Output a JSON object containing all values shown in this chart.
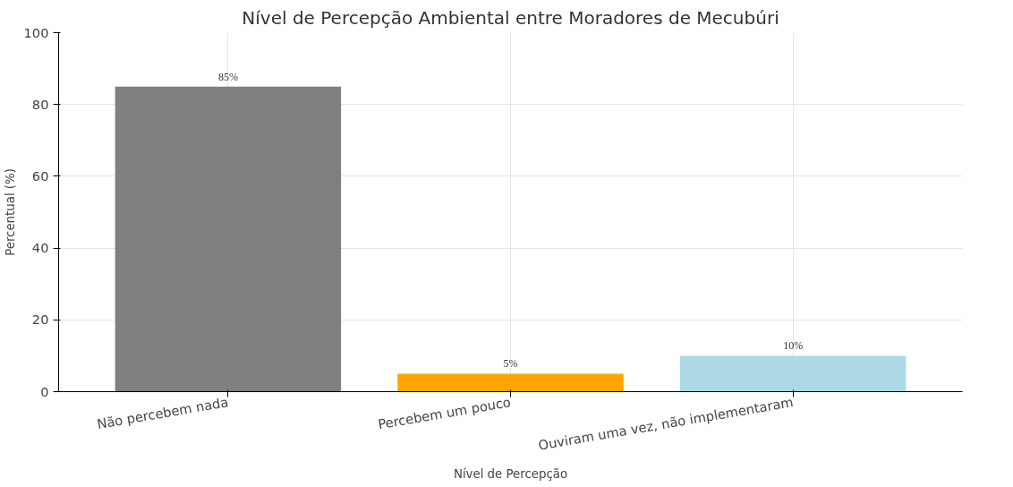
{
  "chart_data": {
    "type": "bar",
    "title": "Nível de Percepção Ambiental entre Moradores de Mecubúri",
    "xlabel": "Nível de Percepção",
    "ylabel": "Percentual (%)",
    "categories": [
      "Não percebem nada",
      "Percebem um pouco",
      "Ouviram uma vez, não implementaram"
    ],
    "values": [
      85,
      5,
      10
    ],
    "colors": [
      "#808080",
      "#ffa500",
      "#add8e6"
    ],
    "value_labels": [
      "85%",
      "5%",
      "10%"
    ],
    "ylim": [
      0,
      100
    ],
    "yticks": [
      0,
      20,
      40,
      60,
      80,
      100
    ],
    "grid": true
  }
}
